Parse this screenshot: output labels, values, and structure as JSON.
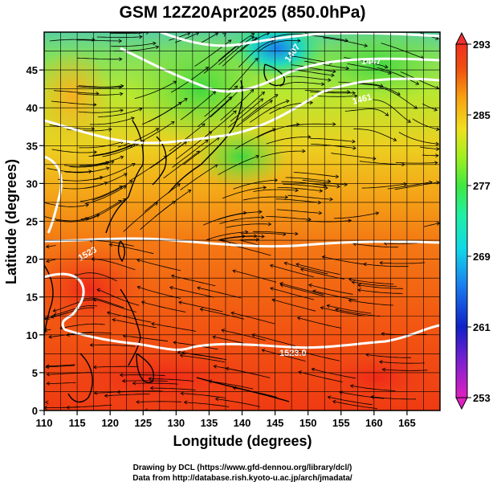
{
  "title": "GSM 12Z20Apr2025 (850.0hPa)",
  "x_axis": {
    "label": "Longitude (degrees)",
    "min": 110,
    "max": 170,
    "ticks": [
      "110",
      "115",
      "120",
      "125",
      "130",
      "135",
      "140",
      "145",
      "150",
      "155",
      "160",
      "165"
    ]
  },
  "y_axis": {
    "label": "Latitude  (degrees)",
    "min": 0,
    "max": 50,
    "ticks": [
      "0",
      "5",
      "10",
      "15",
      "20",
      "25",
      "30",
      "35",
      "40",
      "45"
    ]
  },
  "colorbar": {
    "min": 253,
    "max": 293,
    "ticks": [
      "253",
      "261",
      "269",
      "277",
      "285",
      "293"
    ],
    "colors": [
      "#e020c0",
      "#8020d0",
      "#1020c8",
      "#1a80f0",
      "#10d8e8",
      "#20f0a0",
      "#40e840",
      "#a0f020",
      "#f0e020",
      "#f8a010",
      "#f05010",
      "#f03020"
    ]
  },
  "isobar_labels": [
    "1407",
    "1447",
    "1461",
    "1523",
    "1523.0"
  ],
  "credits": {
    "line1": "Drawing by DCL (https://www.gfd-dennou.org/library/dcl/)",
    "line2": "Data from http://database.rish.kyoto-u.ac.jp/arch/jmadata/"
  }
}
